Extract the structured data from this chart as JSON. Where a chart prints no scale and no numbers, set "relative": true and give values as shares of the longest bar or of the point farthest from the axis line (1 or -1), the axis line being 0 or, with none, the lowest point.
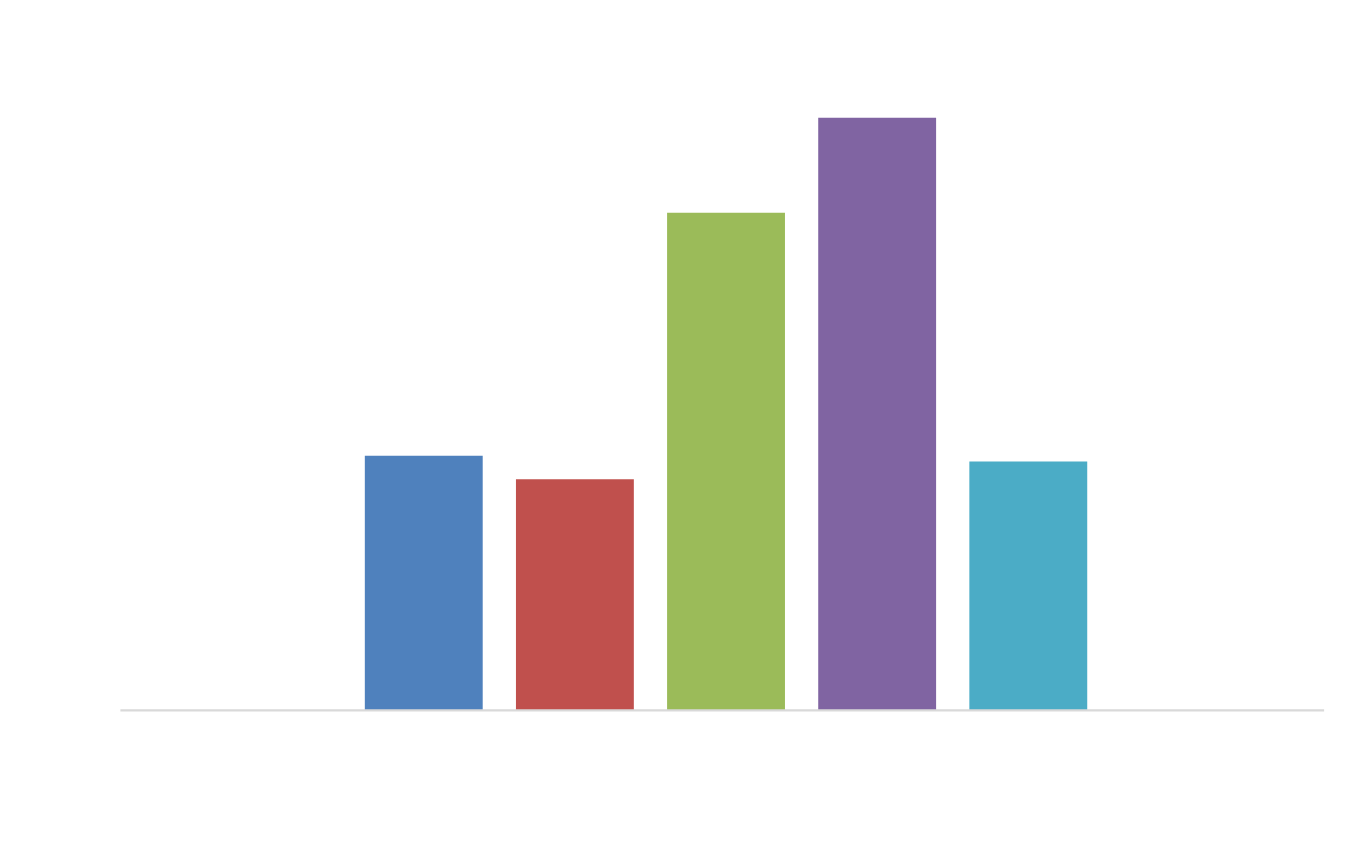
{
  "chart_data": {
    "type": "bar",
    "relative": true,
    "categories": [
      null,
      null,
      null,
      null,
      null
    ],
    "values": [
      0.43,
      0.39,
      0.84,
      1,
      0.42
    ],
    "colors": [
      "#4f81bd",
      "#c0504d",
      "#9bbb59",
      "#8064a2",
      "#4bacc6"
    ]
  }
}
